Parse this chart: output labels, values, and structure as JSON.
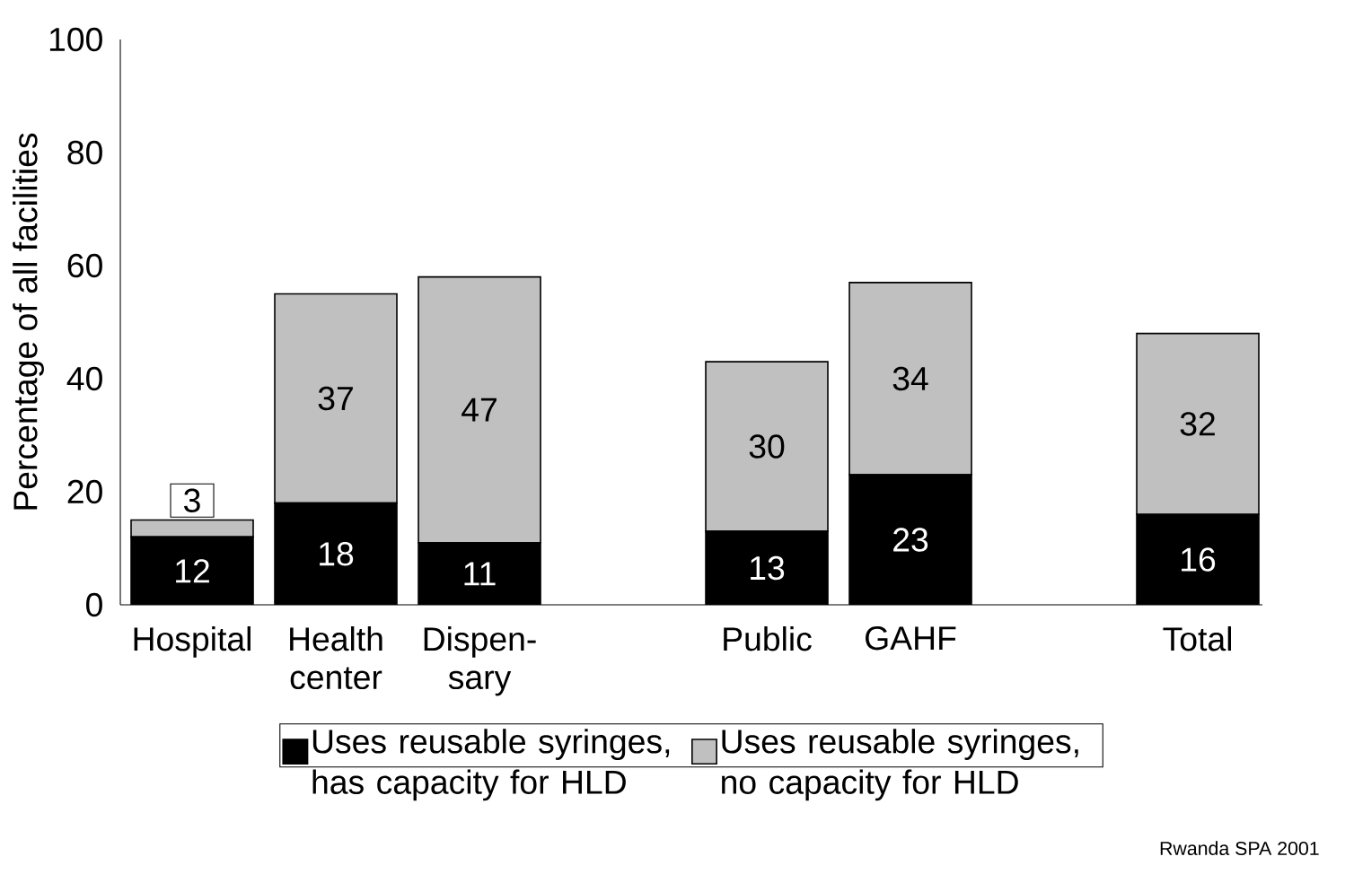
{
  "chart_data": {
    "type": "bar",
    "stacked": true,
    "ylabel": "Percentage of all facilities",
    "categories": [
      "Hospital",
      "Health center",
      "Dispen-sary",
      null,
      "Public",
      "GAHF",
      null,
      "Total"
    ],
    "series": [
      {
        "name": "Uses reusable syringes, has capacity for HLD",
        "color": "#000000",
        "values": [
          12,
          18,
          11,
          null,
          13,
          23,
          null,
          16
        ]
      },
      {
        "name": "Uses reusable syringes, no capacity for HLD",
        "color": "#c0c0c0",
        "values": [
          3,
          37,
          47,
          null,
          30,
          34,
          null,
          32
        ]
      }
    ],
    "ylim": [
      0,
      100
    ],
    "yticks": [
      0,
      20,
      40,
      60,
      80,
      100
    ],
    "data_labels": true,
    "grid": false,
    "legend": "bottom",
    "annotations": [
      "Rwanda SPA 2001"
    ]
  }
}
